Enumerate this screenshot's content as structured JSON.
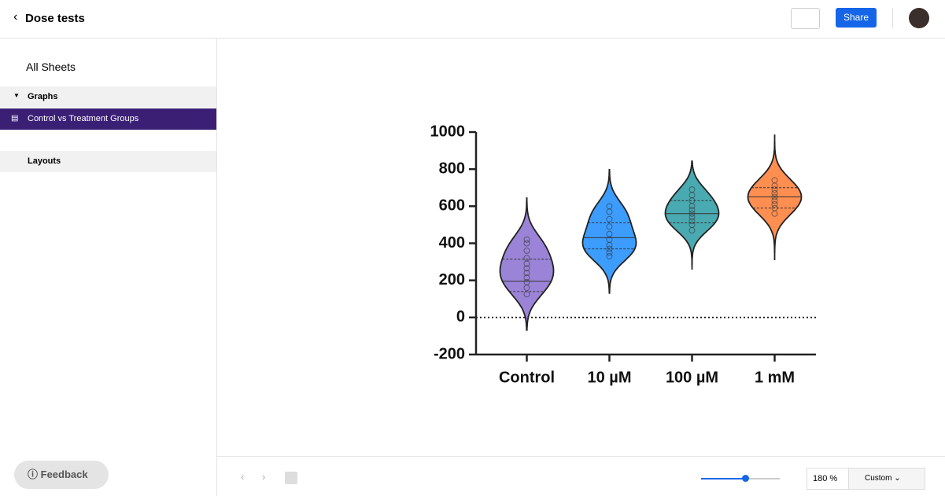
{
  "header": {
    "title": "Dose tests",
    "share": "Share"
  },
  "sidebar": {
    "all_sheets": "All Sheets",
    "graphs_heading": "Graphs",
    "graph_item": "Control vs Treatment Groups",
    "layouts_heading": "Layouts",
    "feedback": "Feedback"
  },
  "toolbar": {
    "zoom_value": "180",
    "zoom_unit": "%",
    "zoom_mode": "Custom"
  },
  "chart_data": {
    "type": "violin",
    "categories": [
      "Control",
      "10 µM",
      "100 µM",
      "1 mM"
    ],
    "violins": [
      {
        "color": "#8a6fd0",
        "min": -68,
        "q1": 140,
        "median": 195,
        "q3": 314,
        "max": 644,
        "points": [
          125,
          160,
          190,
          215,
          240,
          265,
          290,
          320,
          360,
          400,
          420
        ]
      },
      {
        "color": "#1a8cff",
        "min": 131,
        "q1": 370,
        "median": 430,
        "q3": 510,
        "max": 797,
        "points": [
          330,
          350,
          370,
          390,
          420,
          450,
          490,
          530,
          570,
          600
        ]
      },
      {
        "color": "#2a9ba3",
        "min": 258,
        "q1": 510,
        "median": 560,
        "q3": 630,
        "max": 843,
        "points": [
          470,
          500,
          520,
          540,
          560,
          580,
          600,
          630,
          660,
          690
        ]
      },
      {
        "color": "#ff7a33",
        "min": 309,
        "q1": 590,
        "median": 650,
        "q3": 700,
        "max": 987,
        "points": [
          560,
          590,
          610,
          630,
          650,
          670,
          690,
          710,
          740
        ]
      }
    ],
    "ylim": [
      -200,
      1000
    ],
    "yticks": [
      -200,
      0,
      200,
      400,
      600,
      800,
      1000
    ],
    "reference_line": 0
  }
}
